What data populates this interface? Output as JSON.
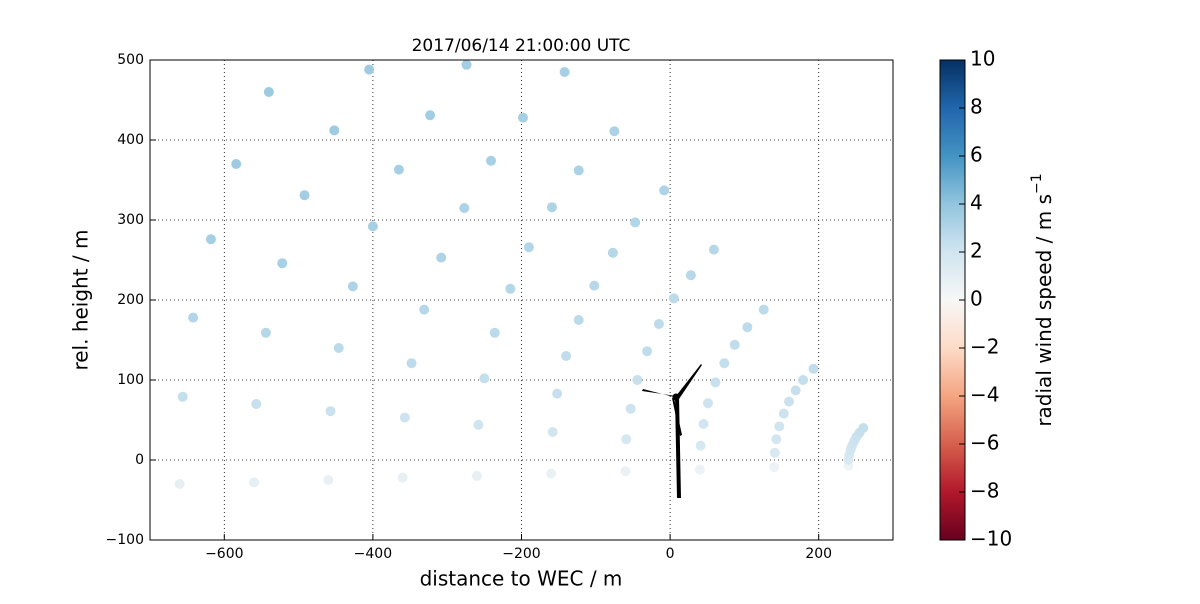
{
  "chart_data": {
    "type": "scatter",
    "title": "2017/06/14 21:00:00 UTC",
    "xlabel": "distance to WEC / m",
    "ylabel": "rel. height / m",
    "xlim": [
      -700,
      300
    ],
    "xticks": [
      {
        "value": -600,
        "label": "−600"
      },
      {
        "value": -400,
        "label": "−400"
      },
      {
        "value": -200,
        "label": "−200"
      },
      0,
      200
    ],
    "ylim": [
      -100,
      500
    ],
    "yticks": [
      {
        "value": -100,
        "label": "−100"
      },
      0,
      100,
      200,
      300,
      400,
      500
    ],
    "grid": true,
    "cmap": "RdBu_r",
    "clim": [
      -10,
      10
    ],
    "cticks": [
      {
        "value": -10,
        "label": "−10"
      },
      {
        "value": -8,
        "label": "−8"
      },
      {
        "value": -6,
        "label": "−6"
      },
      {
        "value": -4,
        "label": "−4"
      },
      {
        "value": -2,
        "label": "−2"
      },
      0,
      2,
      4,
      6,
      8,
      10
    ],
    "clabel": {
      "text": "radial wind speed / m s",
      "sup": "−1"
    },
    "series": [
      {
        "x": [
          240,
          140,
          40,
          -60,
          -160,
          -260,
          -360,
          -460,
          -560,
          -660
        ],
        "y": [
          -7,
          -9,
          -12,
          -14,
          -17,
          -20,
          -22,
          -25,
          -28,
          -30
        ],
        "values": [
          0.5,
          0.6,
          0.6,
          0.7,
          0.7,
          0.8,
          0.8,
          0.8,
          0.9,
          0.9
        ]
      },
      {
        "x": [
          240,
          141,
          41,
          -59,
          -158,
          -258,
          -357,
          -457,
          -557,
          -656
        ],
        "y": [
          0,
          9,
          18,
          26,
          35,
          44,
          53,
          61,
          70,
          79
        ],
        "values": [
          1.5,
          1.6,
          1.7,
          1.8,
          1.9,
          2.0,
          2.1,
          2.2,
          2.3,
          2.4
        ]
      },
      {
        "x": [
          241,
          143,
          45,
          -53,
          -152,
          -250,
          -348,
          -446,
          -544,
          -642
        ],
        "y": [
          6,
          26,
          45,
          64,
          83,
          102,
          121,
          140,
          159,
          178
        ],
        "values": [
          1.8,
          1.9,
          2.0,
          2.1,
          2.3,
          2.4,
          2.6,
          2.7,
          2.9,
          3.0
        ]
      },
      {
        "x": [
          243,
          147,
          51,
          -44,
          -140,
          -236,
          -331,
          -427,
          -522,
          -618
        ],
        "y": [
          13,
          42,
          71,
          100,
          130,
          159,
          188,
          217,
          246,
          276
        ],
        "values": [
          1.9,
          2.0,
          2.1,
          2.3,
          2.5,
          2.7,
          2.9,
          3.1,
          3.3,
          3.4
        ]
      },
      {
        "x": [
          245,
          153,
          61,
          -31,
          -123,
          -215,
          -308,
          -400,
          -492,
          -584
        ],
        "y": [
          18,
          58,
          97,
          136,
          175,
          214,
          253,
          292,
          331,
          370
        ],
        "values": [
          2.0,
          2.1,
          2.3,
          2.5,
          2.7,
          2.9,
          3.1,
          3.3,
          3.5,
          3.6
        ]
      },
      {
        "x": [
          248,
          160,
          73,
          -15,
          -102,
          -190,
          -277,
          -365,
          -452,
          -540
        ],
        "y": [
          24,
          73,
          121,
          170,
          218,
          266,
          315,
          363,
          412,
          460
        ],
        "values": [
          2.1,
          2.2,
          2.4,
          2.6,
          2.8,
          3.0,
          3.2,
          3.4,
          3.6,
          3.7
        ]
      },
      {
        "x": [
          251,
          169,
          87,
          5,
          -77,
          -159,
          -241,
          -323,
          -405
        ],
        "y": [
          29,
          87,
          144,
          202,
          259,
          316,
          374,
          431,
          488
        ],
        "values": [
          2.2,
          2.3,
          2.5,
          2.7,
          2.9,
          3.1,
          3.3,
          3.5,
          3.6
        ]
      },
      {
        "x": [
          255,
          179,
          104,
          28,
          -47,
          -123,
          -198,
          -274
        ],
        "y": [
          34,
          100,
          166,
          231,
          297,
          362,
          428,
          494
        ],
        "values": [
          2.3,
          2.4,
          2.6,
          2.8,
          3.0,
          3.2,
          3.4,
          3.5
        ]
      },
      {
        "x": [
          260,
          193,
          126,
          59,
          -8,
          -75,
          -142
        ],
        "y": [
          40,
          114,
          188,
          263,
          337,
          411,
          485
        ],
        "values": [
          2.4,
          2.5,
          2.7,
          2.9,
          3.1,
          3.2,
          3.3
        ]
      }
    ]
  }
}
